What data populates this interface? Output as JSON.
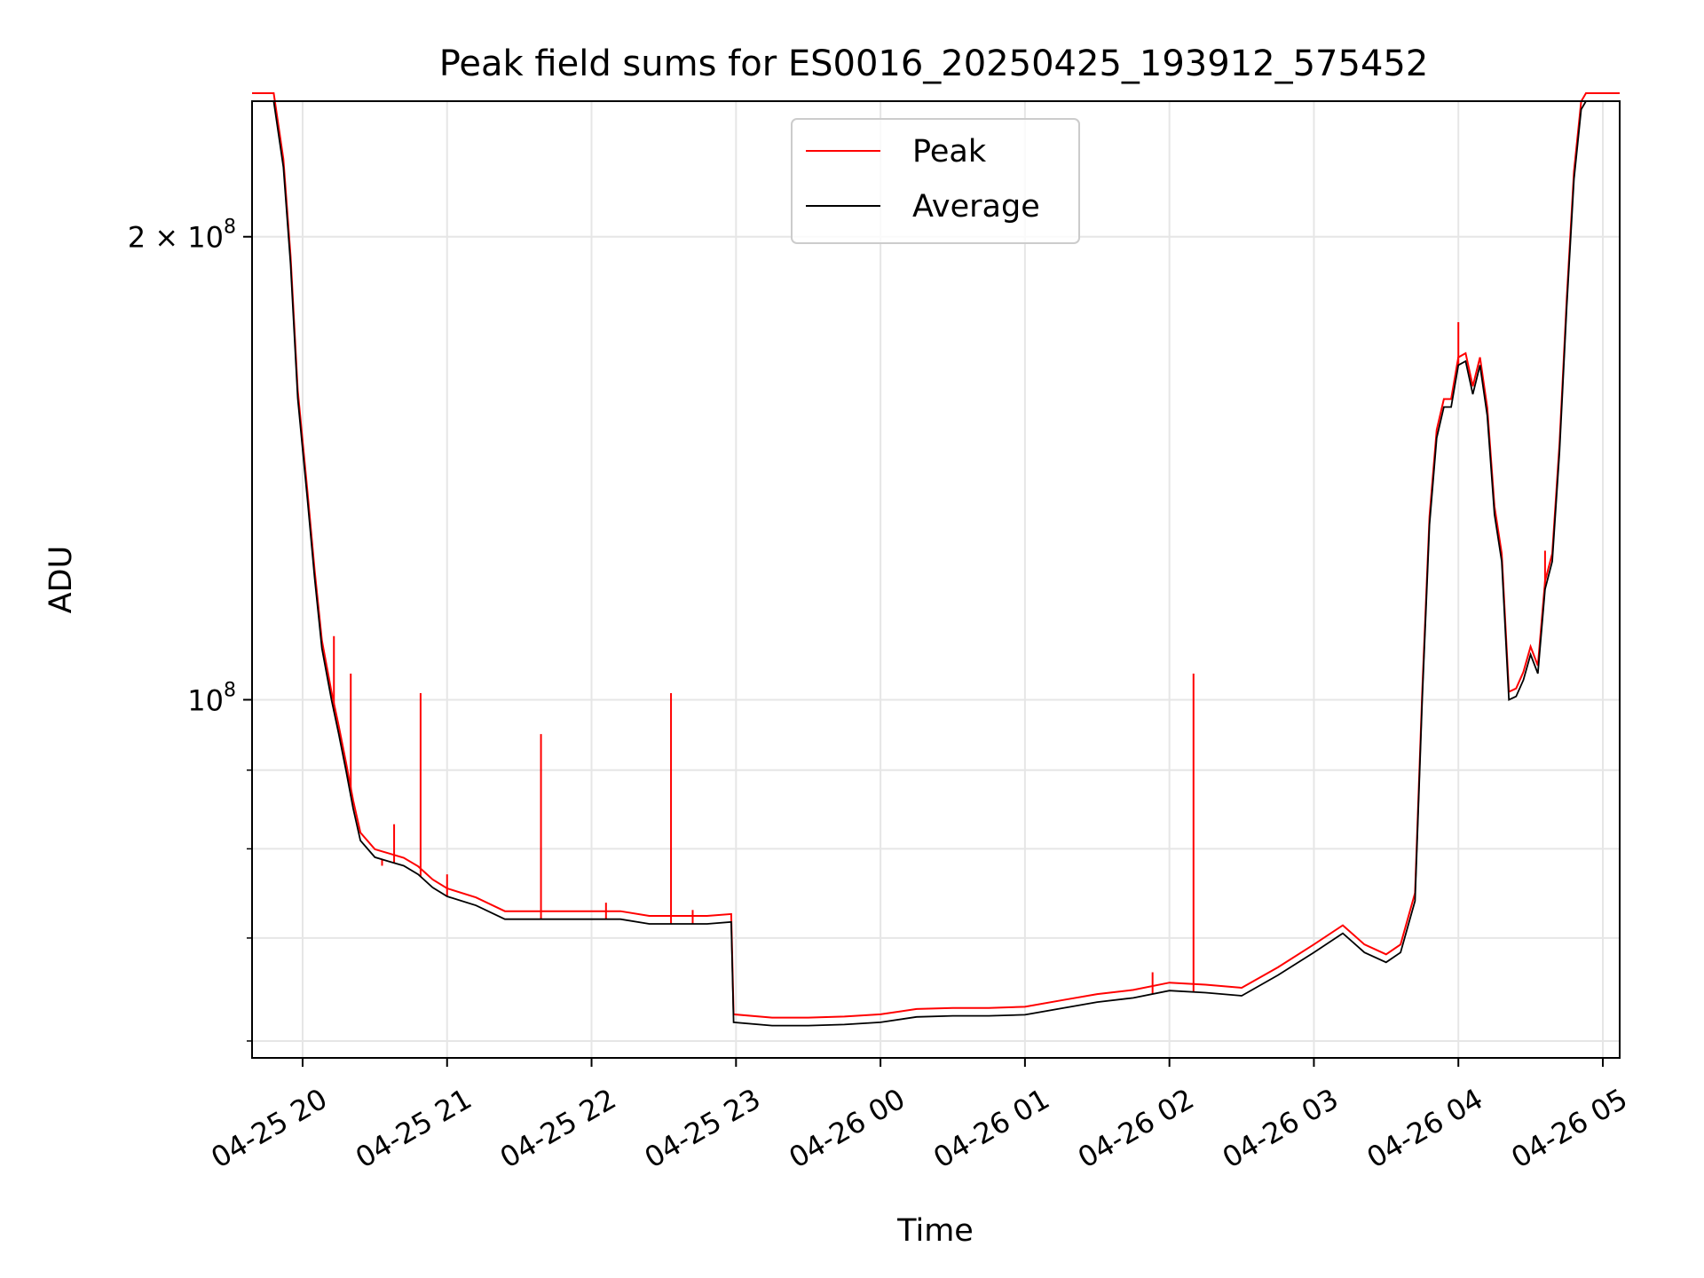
{
  "chart_data": {
    "type": "line",
    "title": "Peak field sums for ES0016_20250425_193912_575452",
    "xlabel": "Time",
    "ylabel": "ADU",
    "yscale": "log",
    "grid": true,
    "legend": "upper-center",
    "xlim": [
      "2025-04-25 19:39",
      "2025-04-26 05:07"
    ],
    "ylim": [
      58500000,
      245000000
    ],
    "x_ticks": [
      {
        "value": "2025-04-25 20:00",
        "label": "04-25 20"
      },
      {
        "value": "2025-04-25 21:00",
        "label": "04-25 21"
      },
      {
        "value": "2025-04-25 22:00",
        "label": "04-25 22"
      },
      {
        "value": "2025-04-25 23:00",
        "label": "04-25 23"
      },
      {
        "value": "2025-04-26 00:00",
        "label": "04-26 00"
      },
      {
        "value": "2025-04-26 01:00",
        "label": "04-26 01"
      },
      {
        "value": "2025-04-26 02:00",
        "label": "04-26 02"
      },
      {
        "value": "2025-04-26 03:00",
        "label": "04-26 03"
      },
      {
        "value": "2025-04-26 04:00",
        "label": "04-26 04"
      },
      {
        "value": "2025-04-26 05:00",
        "label": "04-26 05"
      }
    ],
    "y_major_ticks": [
      {
        "value": 100000000,
        "base": "10",
        "exp": "8"
      },
      {
        "value": 200000000,
        "base": "2 × 10",
        "exp": "8"
      }
    ],
    "y_minor_ticks": [
      60000000,
      70000000,
      80000000,
      90000000
    ],
    "series": [
      {
        "name": "Peak",
        "color": "#ff0000"
      },
      {
        "name": "Average",
        "color": "#000000"
      }
    ],
    "average_points": [
      [
        "2025-04-25 19:39",
        245000000
      ],
      [
        "2025-04-25 19:48",
        245000000
      ],
      [
        "2025-04-25 19:52",
        222000000
      ],
      [
        "2025-04-25 19:55",
        192000000
      ],
      [
        "2025-04-25 19:58",
        157000000
      ],
      [
        "2025-04-25 20:02",
        135000000
      ],
      [
        "2025-04-25 20:05",
        120000000
      ],
      [
        "2025-04-25 20:08",
        108000000
      ],
      [
        "2025-04-25 20:12",
        100000000
      ],
      [
        "2025-04-25 20:15",
        95000000
      ],
      [
        "2025-04-25 20:18",
        90000000
      ],
      [
        "2025-04-25 20:21",
        85000000
      ],
      [
        "2025-04-25 20:24",
        81000000
      ],
      [
        "2025-04-25 20:30",
        79000000
      ],
      [
        "2025-04-25 20:36",
        78500000
      ],
      [
        "2025-04-25 20:42",
        78000000
      ],
      [
        "2025-04-25 20:48",
        77000000
      ],
      [
        "2025-04-25 20:54",
        75500000
      ],
      [
        "2025-04-25 21:00",
        74500000
      ],
      [
        "2025-04-25 21:12",
        73500000
      ],
      [
        "2025-04-25 21:24",
        72000000
      ],
      [
        "2025-04-25 21:36",
        72000000
      ],
      [
        "2025-04-25 21:48",
        72000000
      ],
      [
        "2025-04-25 22:00",
        72000000
      ],
      [
        "2025-04-25 22:12",
        72000000
      ],
      [
        "2025-04-25 22:24",
        71500000
      ],
      [
        "2025-04-25 22:36",
        71500000
      ],
      [
        "2025-04-25 22:48",
        71500000
      ],
      [
        "2025-04-25 22:58",
        71700000
      ],
      [
        "2025-04-25 22:59",
        61700000
      ],
      [
        "2025-04-25 23:15",
        61400000
      ],
      [
        "2025-04-25 23:30",
        61400000
      ],
      [
        "2025-04-25 23:45",
        61500000
      ],
      [
        "2025-04-26 00:00",
        61700000
      ],
      [
        "2025-04-26 00:15",
        62200000
      ],
      [
        "2025-04-26 00:30",
        62300000
      ],
      [
        "2025-04-26 00:45",
        62300000
      ],
      [
        "2025-04-26 01:00",
        62400000
      ],
      [
        "2025-04-26 01:15",
        63000000
      ],
      [
        "2025-04-26 01:30",
        63600000
      ],
      [
        "2025-04-26 01:45",
        64000000
      ],
      [
        "2025-04-26 02:00",
        64700000
      ],
      [
        "2025-04-26 02:15",
        64500000
      ],
      [
        "2025-04-26 02:30",
        64200000
      ],
      [
        "2025-04-26 02:45",
        66200000
      ],
      [
        "2025-04-26 03:00",
        68500000
      ],
      [
        "2025-04-26 03:12",
        70500000
      ],
      [
        "2025-04-26 03:21",
        68500000
      ],
      [
        "2025-04-26 03:30",
        67500000
      ],
      [
        "2025-04-26 03:36",
        68500000
      ],
      [
        "2025-04-26 03:42",
        74000000
      ],
      [
        "2025-04-26 03:45",
        100000000
      ],
      [
        "2025-04-26 03:48",
        130000000
      ],
      [
        "2025-04-26 03:51",
        148000000
      ],
      [
        "2025-04-26 03:54",
        155000000
      ],
      [
        "2025-04-26 03:57",
        155000000
      ],
      [
        "2025-04-26 04:00",
        165000000
      ],
      [
        "2025-04-26 04:03",
        166000000
      ],
      [
        "2025-04-26 04:06",
        158000000
      ],
      [
        "2025-04-26 04:09",
        165000000
      ],
      [
        "2025-04-26 04:12",
        153000000
      ],
      [
        "2025-04-26 04:15",
        132000000
      ],
      [
        "2025-04-26 04:18",
        123000000
      ],
      [
        "2025-04-26 04:21",
        100000000
      ],
      [
        "2025-04-26 04:24",
        100500000
      ],
      [
        "2025-04-26 04:27",
        103000000
      ],
      [
        "2025-04-26 04:30",
        107000000
      ],
      [
        "2025-04-26 04:33",
        104000000
      ],
      [
        "2025-04-26 04:36",
        118000000
      ],
      [
        "2025-04-26 04:39",
        123000000
      ],
      [
        "2025-04-26 04:42",
        145000000
      ],
      [
        "2025-04-26 04:45",
        180000000
      ],
      [
        "2025-04-26 04:48",
        218000000
      ],
      [
        "2025-04-26 04:51",
        242000000
      ],
      [
        "2025-04-26 04:53",
        245000000
      ],
      [
        "2025-04-26 05:07",
        245000000
      ]
    ],
    "peak_spikes": [
      [
        "2025-04-25 20:13",
        110000000
      ],
      [
        "2025-04-25 20:20",
        104000000
      ],
      [
        "2025-04-25 20:33",
        78000000
      ],
      [
        "2025-04-25 20:38",
        83000000
      ],
      [
        "2025-04-25 20:49",
        101000000
      ],
      [
        "2025-04-25 21:00",
        77000000
      ],
      [
        "2025-04-25 21:39",
        95000000
      ],
      [
        "2025-04-25 22:06",
        73800000
      ],
      [
        "2025-04-25 22:33",
        101000000
      ],
      [
        "2025-04-25 22:42",
        73000000
      ],
      [
        "2025-04-26 01:53",
        66500000
      ],
      [
        "2025-04-26 02:10",
        104000000
      ],
      [
        "2025-04-26 04:00",
        176000000
      ],
      [
        "2025-04-26 04:36",
        125000000
      ]
    ]
  }
}
